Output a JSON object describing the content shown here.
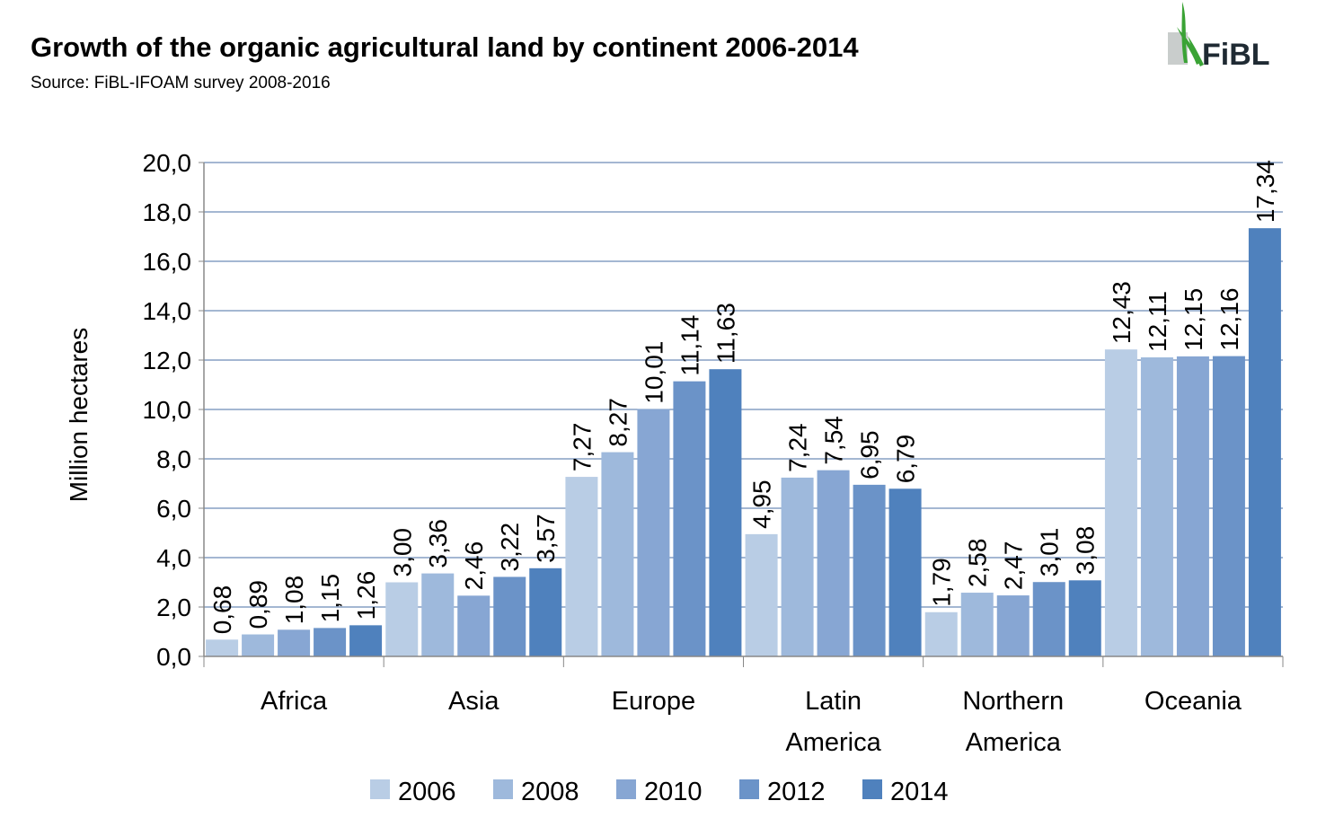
{
  "header": {
    "title": "Growth of the organic agricultural land by continent 2006-2014",
    "source": "Source: FiBL-IFOAM survey 2008-2016"
  },
  "logo": {
    "text": "FiBL",
    "icon": "fibl-leaf-icon"
  },
  "colors": {
    "series": [
      "#b9cde5",
      "#9eb9dc",
      "#87a6d3",
      "#6b93c8",
      "#4f81bd"
    ],
    "grid": "#4a6fa5",
    "axis": "#888888"
  },
  "chart_data": {
    "type": "bar",
    "title": "Growth of the organic agricultural land by continent 2006-2014",
    "xlabel": "",
    "ylabel": "Million hectares",
    "ylim": [
      0,
      20
    ],
    "y_ticks": [
      "0,0",
      "2,0",
      "4,0",
      "6,0",
      "8,0",
      "10,0",
      "12,0",
      "14,0",
      "16,0",
      "18,0",
      "20,0"
    ],
    "grid": true,
    "legend_position": "bottom",
    "categories": [
      [
        "Africa"
      ],
      [
        "Asia"
      ],
      [
        "Europe"
      ],
      [
        "Latin",
        "America"
      ],
      [
        "Northern",
        "America"
      ],
      [
        "Oceania"
      ]
    ],
    "series": [
      {
        "name": "2006",
        "values": [
          0.68,
          3.0,
          7.27,
          4.95,
          1.79,
          12.43
        ],
        "labels": [
          "0,68",
          "3,00",
          "7,27",
          "4,95",
          "1,79",
          "12,43"
        ]
      },
      {
        "name": "2008",
        "values": [
          0.89,
          3.36,
          8.27,
          7.24,
          2.58,
          12.11
        ],
        "labels": [
          "0,89",
          "3,36",
          "8,27",
          "7,24",
          "2,58",
          "12,11"
        ]
      },
      {
        "name": "2010",
        "values": [
          1.08,
          2.46,
          10.01,
          7.54,
          2.47,
          12.15
        ],
        "labels": [
          "1,08",
          "2,46",
          "10,01",
          "7,54",
          "2,47",
          "12,15"
        ]
      },
      {
        "name": "2012",
        "values": [
          1.15,
          3.22,
          11.14,
          6.95,
          3.01,
          12.16
        ],
        "labels": [
          "1,15",
          "3,22",
          "11,14",
          "6,95",
          "3,01",
          "12,16"
        ]
      },
      {
        "name": "2014",
        "values": [
          1.26,
          3.57,
          11.63,
          6.79,
          3.08,
          17.34
        ],
        "labels": [
          "1,26",
          "3,57",
          "11,63",
          "6,79",
          "3,08",
          "17,34"
        ]
      }
    ]
  }
}
